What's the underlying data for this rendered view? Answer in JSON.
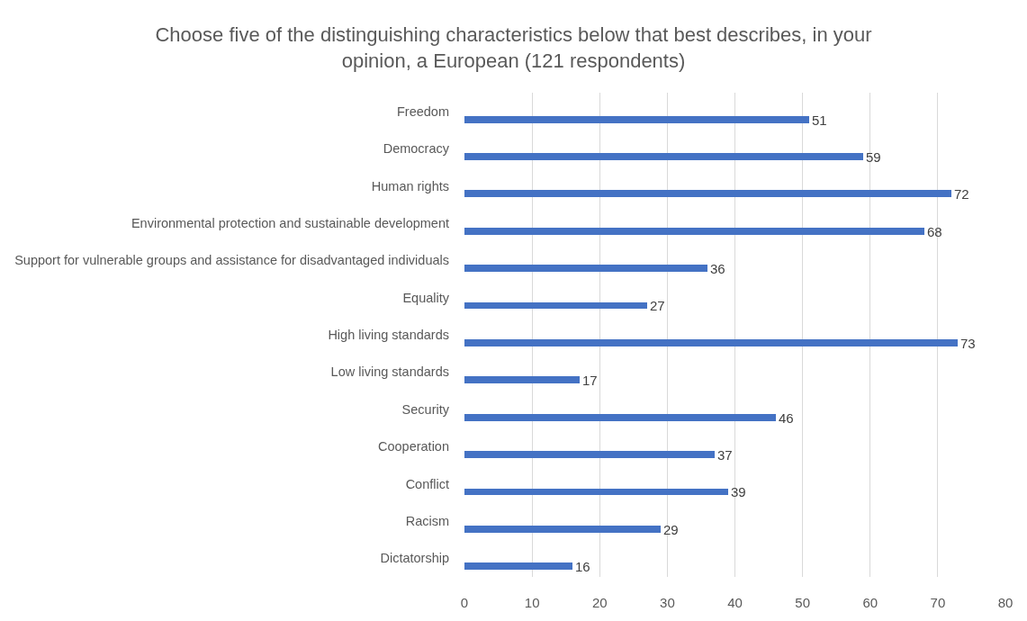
{
  "chart_data": {
    "type": "bar",
    "orientation": "horizontal",
    "title": "Choose five of the distinguishing characteristics below that best describes, in your opinion, a European (121 respondents)",
    "categories": [
      "Freedom",
      "Democracy",
      "Human rights",
      "Environmental protection and sustainable development",
      "Support for vulnerable groups and assistance for disadvantaged individuals",
      "Equality",
      "High living standards",
      "Low living standards",
      "Security",
      "Cooperation",
      "Conflict",
      "Racism",
      "Dictatorship"
    ],
    "values": [
      51,
      59,
      72,
      68,
      36,
      27,
      73,
      17,
      46,
      37,
      39,
      29,
      16
    ],
    "color": "#4472c4",
    "xlim": [
      0,
      80
    ],
    "xticks": [
      0,
      10,
      20,
      30,
      40,
      50,
      60,
      70,
      80
    ],
    "grid": "x",
    "data_labels": true
  }
}
